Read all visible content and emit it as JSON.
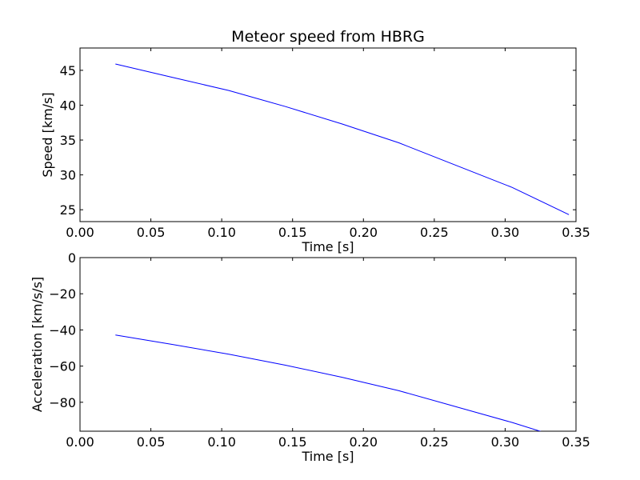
{
  "chart_data": [
    {
      "type": "line",
      "title": "Meteor speed from  HBRG",
      "xlabel": "Time [s]",
      "ylabel": "Speed [km/s]",
      "xlim": [
        0.0,
        0.35
      ],
      "ylim": [
        23.3,
        48.2
      ],
      "xticks": [
        "0.00",
        "0.05",
        "0.10",
        "0.15",
        "0.20",
        "0.25",
        "0.30",
        "0.35"
      ],
      "yticks": [
        "25",
        "30",
        "35",
        "40",
        "45"
      ],
      "grid": false,
      "series": [
        {
          "color": "#0000ff",
          "x": [
            0.025,
            0.065,
            0.105,
            0.145,
            0.185,
            0.225,
            0.265,
            0.305,
            0.345
          ],
          "y": [
            45.9,
            44.0,
            42.1,
            39.8,
            37.3,
            34.6,
            31.4,
            28.2,
            24.3
          ]
        }
      ]
    },
    {
      "type": "line",
      "title": "",
      "xlabel": "Time [s]",
      "ylabel": "Acceleration [km/s/s]",
      "xlim": [
        0.0,
        0.35
      ],
      "ylim": [
        -96,
        0
      ],
      "xticks": [
        "0.00",
        "0.05",
        "0.10",
        "0.15",
        "0.20",
        "0.25",
        "0.30",
        "0.35"
      ],
      "yticks": [
        "0",
        "−20",
        "−40",
        "−60",
        "−80"
      ],
      "grid": false,
      "series": [
        {
          "color": "#0000ff",
          "x": [
            0.025,
            0.065,
            0.105,
            0.145,
            0.185,
            0.225,
            0.265,
            0.305,
            0.345
          ],
          "y": [
            -42.8,
            -48.0,
            -53.4,
            -59.5,
            -66.2,
            -73.6,
            -82.4,
            -91.2,
            -101.0
          ]
        }
      ]
    }
  ]
}
